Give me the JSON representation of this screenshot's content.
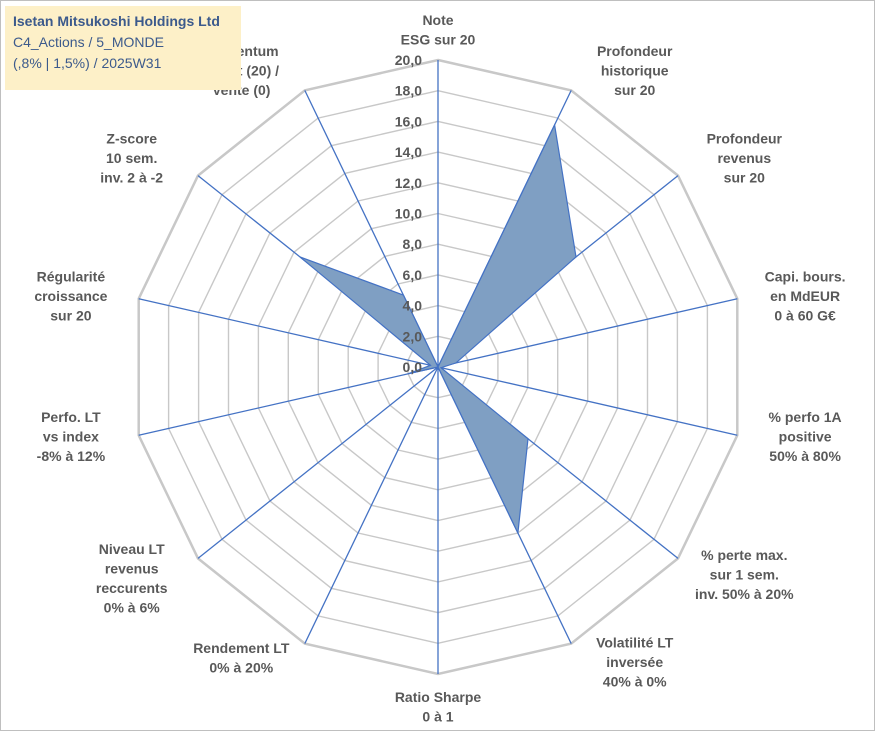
{
  "title_box": {
    "line1": "Isetan Mitsukoshi Holdings Ltd",
    "line2": "C4_Actions / 5_MONDE",
    "line3": "(,8% | 1,5%) / 2025W31"
  },
  "colors": {
    "fill": "#7f9fc3",
    "stroke": "#4472c4",
    "grid": "#c8c8c8",
    "title_bg": "#fdf0c8",
    "title_text": "#3c5a8c",
    "label_text": "#595959"
  },
  "chart_data": {
    "type": "radar",
    "rmin": 0,
    "rmax": 20,
    "tick_step": 2,
    "ticks": [
      "0,0",
      "2,0",
      "4,0",
      "6,0",
      "8,0",
      "10,0",
      "12,0",
      "14,0",
      "16,0",
      "18,0",
      "20,0"
    ],
    "categories": [
      [
        "Note",
        "ESG sur 20"
      ],
      [
        "Profondeur",
        "historique",
        "sur 20"
      ],
      [
        "Profondeur",
        "revenus",
        "sur 20"
      ],
      [
        "Capi. bours.",
        "en MdEUR",
        "0 à 60 G€"
      ],
      [
        "% perfo 1A",
        "positive",
        "50% à 80%"
      ],
      [
        "% perte max.",
        "sur 1 sem.",
        "inv. 50% à 20%"
      ],
      [
        "Volatilité LT",
        "inversée",
        "40% à 0%"
      ],
      [
        "Ratio Sharpe",
        "0 à 1"
      ],
      [
        "Rendement LT",
        "0% à 20%"
      ],
      [
        "Niveau LT",
        "revenus",
        "reccurents",
        "0% à 6%"
      ],
      [
        "Perfo. LT",
        "vs index",
        "-8% à 12%"
      ],
      [
        "Régularité",
        "croissance",
        "sur 20"
      ],
      [
        "Z-score",
        "10 sem.",
        "inv. 2 à -2"
      ],
      [
        "Momentum",
        "Achat (20) /",
        "Vente (0)"
      ]
    ],
    "values": [
      0,
      17.5,
      11.5,
      1.2,
      0.2,
      7.5,
      12.0,
      0,
      0,
      0,
      2.0,
      0.5,
      11.5,
      5.2
    ]
  }
}
